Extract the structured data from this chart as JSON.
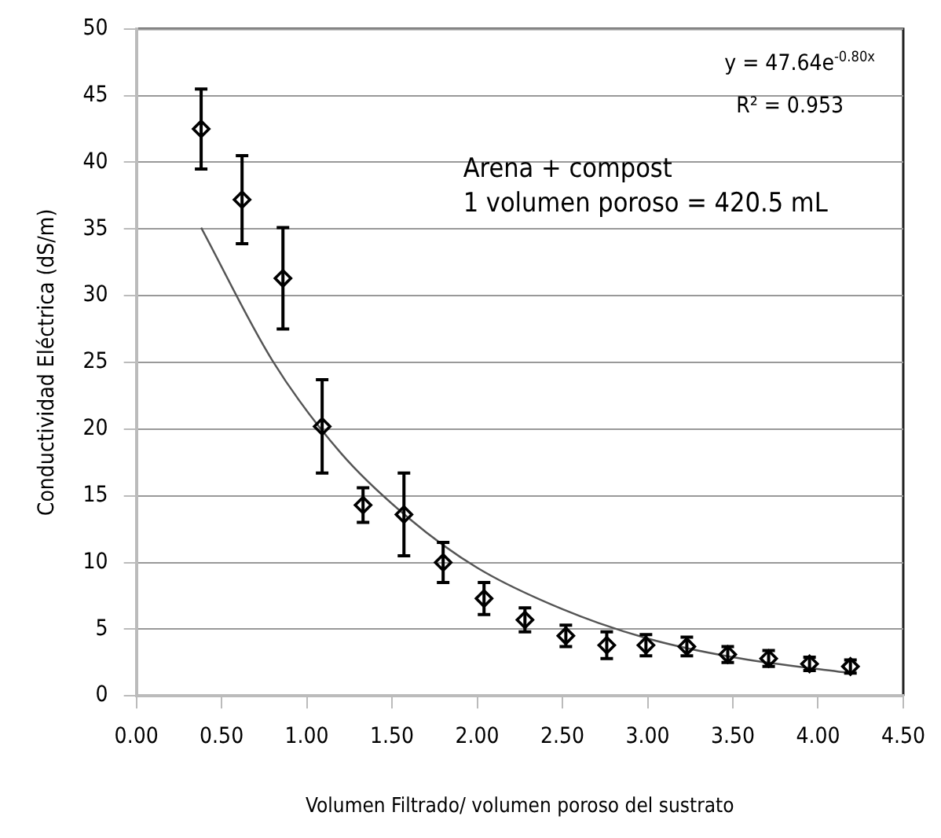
{
  "chart_data": {
    "type": "scatter",
    "xlabel": "Volumen Filtrado/ volumen poroso del sustrato",
    "ylabel": "Conductividad Eléctrica (dS/m)",
    "annotations": [
      "y = 47.64e$^{-0.80x}$",
      "R² = 0.953",
      "Arena + compost",
      "1 volumen poroso = 420.5 mL"
    ],
    "series": [
      {
        "color": "#000000",
        "marker": "diamond",
        "x": [
          0.38,
          0.62,
          0.86,
          1.09,
          1.33,
          1.57,
          1.8,
          2.04,
          2.28,
          2.52,
          2.76,
          2.99,
          3.23,
          3.47,
          3.71,
          3.95,
          4.19
        ],
        "values": [
          42.5,
          37.2,
          31.3,
          20.2,
          14.3,
          13.6,
          10.0,
          7.3,
          5.7,
          4.5,
          3.8,
          3.8,
          3.7,
          3.1,
          2.8,
          2.4,
          2.2
        ],
        "errors": [
          3.0,
          3.3,
          3.8,
          3.5,
          1.3,
          3.1,
          1.5,
          1.2,
          0.9,
          0.8,
          1.0,
          0.8,
          0.7,
          0.6,
          0.6,
          0.5,
          0.5
        ]
      },
      {
        "type": "line",
        "color": "#555555",
        "marker": "none",
        "x": [
          0.38,
          0.8,
          1.2,
          1.6,
          2.0,
          2.5,
          3.0,
          3.5,
          4.19
        ],
        "values": [
          35.1,
          25.1,
          18.2,
          13.3,
          9.6,
          6.5,
          4.3,
          2.9,
          1.7
        ]
      }
    ],
    "grid": "y",
    "legend": false,
    "xlim": [
      0,
      4.5
    ],
    "xticks": [
      {
        "value": 0,
        "label": "0.00"
      },
      {
        "value": 0.5,
        "label": "0.50"
      },
      {
        "value": 1,
        "label": "1.00"
      },
      {
        "value": 1.5,
        "label": "1.50"
      },
      {
        "value": 2,
        "label": "2.00"
      },
      {
        "value": 2.5,
        "label": "2.50"
      },
      {
        "value": 3,
        "label": "3.00"
      },
      {
        "value": 3.5,
        "label": "3.50"
      },
      {
        "value": 4,
        "label": "4.00"
      },
      {
        "value": 4.5,
        "label": "4.50"
      }
    ],
    "ylim": [
      0,
      50
    ],
    "yticks": [
      0,
      5,
      10,
      15,
      20,
      25,
      30,
      35,
      40,
      45,
      50
    ]
  }
}
